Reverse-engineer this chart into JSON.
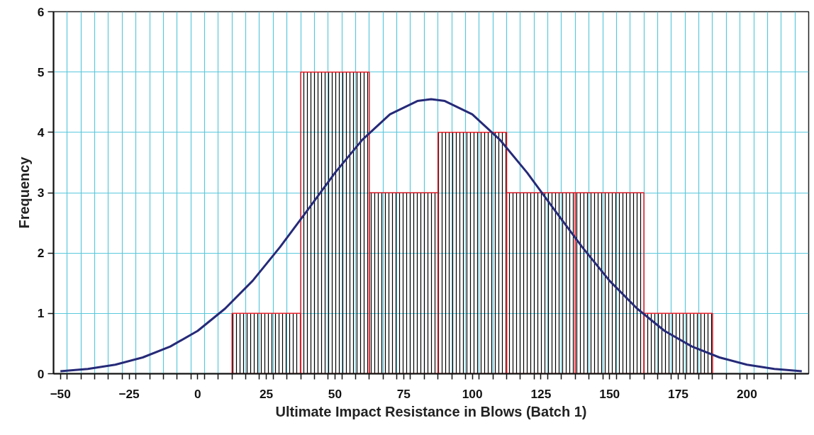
{
  "chart_data": {
    "type": "histogram",
    "xlabel": "Ultimate Impact Resistance in Blows (Batch 1)",
    "ylabel": "Frequency",
    "bins": [
      12.5,
      37.5,
      62.5,
      87.5,
      112.5,
      137.5,
      162.5,
      187.5
    ],
    "values": [
      1,
      5,
      3,
      4,
      3,
      3,
      1
    ],
    "color": "#e8202a",
    "series": [
      {
        "type": "line",
        "color": "#262a78",
        "x": [
          -50,
          -40,
          -30,
          -20,
          -10,
          0,
          10,
          20,
          30,
          40,
          50,
          60,
          70,
          80,
          85,
          90,
          100,
          110,
          120,
          130,
          140,
          150,
          160,
          170,
          180,
          190,
          200,
          210,
          220
        ],
        "values": [
          0.04,
          0.08,
          0.15,
          0.27,
          0.45,
          0.71,
          1.08,
          1.54,
          2.1,
          2.71,
          3.33,
          3.88,
          4.3,
          4.52,
          4.55,
          4.52,
          4.3,
          3.88,
          3.33,
          2.71,
          2.1,
          1.54,
          1.08,
          0.71,
          0.45,
          0.27,
          0.15,
          0.08,
          0.04
        ]
      }
    ],
    "xlim": [
      -52.5,
      222.5
    ],
    "ylim": [
      0,
      6
    ],
    "yticks": [
      0,
      1,
      2,
      3,
      4,
      5,
      6
    ],
    "xticks": [
      -50,
      -25,
      0,
      25,
      50,
      75,
      100,
      125,
      150,
      175,
      200,
      {
        "value": -47.5,
        "label": null
      },
      {
        "value": -42.5,
        "label": null
      },
      {
        "value": -37.5,
        "label": null
      },
      {
        "value": -32.5,
        "label": null
      },
      {
        "value": -27.5,
        "label": null
      },
      {
        "value": -22.5,
        "label": null
      },
      {
        "value": -17.5,
        "label": null
      },
      {
        "value": -12.5,
        "label": null
      },
      {
        "value": -7.5,
        "label": null
      },
      {
        "value": -2.5,
        "label": null
      },
      {
        "value": 2.5,
        "label": null
      },
      {
        "value": 7.5,
        "label": null
      },
      {
        "value": 12.5,
        "label": null
      },
      {
        "value": 17.5,
        "label": null
      },
      {
        "value": 22.5,
        "label": null
      },
      {
        "value": 27.5,
        "label": null
      },
      {
        "value": 32.5,
        "label": null
      },
      {
        "value": 37.5,
        "label": null
      },
      {
        "value": 42.5,
        "label": null
      },
      {
        "value": 47.5,
        "label": null
      },
      {
        "value": 52.5,
        "label": null
      },
      {
        "value": 57.5,
        "label": null
      },
      {
        "value": 62.5,
        "label": null
      },
      {
        "value": 67.5,
        "label": null
      },
      {
        "value": 72.5,
        "label": null
      },
      {
        "value": 77.5,
        "label": null
      },
      {
        "value": 82.5,
        "label": null
      },
      {
        "value": 87.5,
        "label": null
      },
      {
        "value": 92.5,
        "label": null
      },
      {
        "value": 97.5,
        "label": null
      },
      {
        "value": 102.5,
        "label": null
      },
      {
        "value": 107.5,
        "label": null
      },
      {
        "value": 112.5,
        "label": null
      },
      {
        "value": 117.5,
        "label": null
      },
      {
        "value": 122.5,
        "label": null
      },
      {
        "value": 127.5,
        "label": null
      },
      {
        "value": 132.5,
        "label": null
      },
      {
        "value": 137.5,
        "label": null
      },
      {
        "value": 142.5,
        "label": null
      },
      {
        "value": 147.5,
        "label": null
      },
      {
        "value": 152.5,
        "label": null
      },
      {
        "value": 157.5,
        "label": null
      },
      {
        "value": 162.5,
        "label": null
      },
      {
        "value": 167.5,
        "label": null
      },
      {
        "value": 172.5,
        "label": null
      },
      {
        "value": 177.5,
        "label": null
      },
      {
        "value": 182.5,
        "label": null
      },
      {
        "value": 187.5,
        "label": null
      },
      {
        "value": 192.5,
        "label": null
      },
      {
        "value": 197.5,
        "label": null
      },
      {
        "value": 202.5,
        "label": null
      },
      {
        "value": 207.5,
        "label": null
      },
      {
        "value": 212.5,
        "label": null
      },
      {
        "value": 217.5,
        "label": null
      }
    ],
    "grid": true
  }
}
